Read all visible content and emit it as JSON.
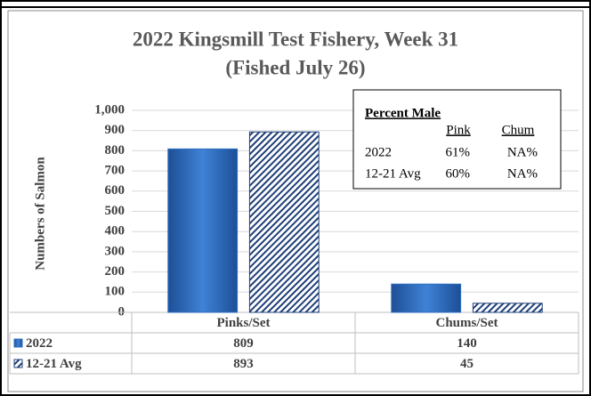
{
  "chart_data": {
    "type": "bar",
    "title": "2022 Kingsmill Test Fishery, Week 31",
    "subtitle": "(Fished July 26)",
    "y_label": "Numbers of Salmon",
    "categories": [
      "Pinks/Set",
      "Chums/Set"
    ],
    "series": [
      {
        "name": "2022",
        "color": "#2e6fc0",
        "values": [
          809,
          140
        ]
      },
      {
        "name": "12-21 Avg",
        "color": "#1f3f78",
        "values": [
          893,
          45
        ]
      }
    ],
    "ylim": [
      0,
      1000
    ],
    "yticks": [
      0,
      100,
      200,
      300,
      400,
      500,
      600,
      700,
      800,
      900,
      {
        "value": 1000,
        "label": "1,000"
      }
    ],
    "grid": true,
    "annotation": {
      "title": "Percent Male",
      "columns": [
        "Pink",
        "Chum"
      ],
      "rows": [
        {
          "label": "2022",
          "values": [
            "61%",
            "NA%"
          ]
        },
        {
          "label": "12-21 Avg",
          "values": [
            "60%",
            "NA%"
          ]
        }
      ]
    }
  }
}
